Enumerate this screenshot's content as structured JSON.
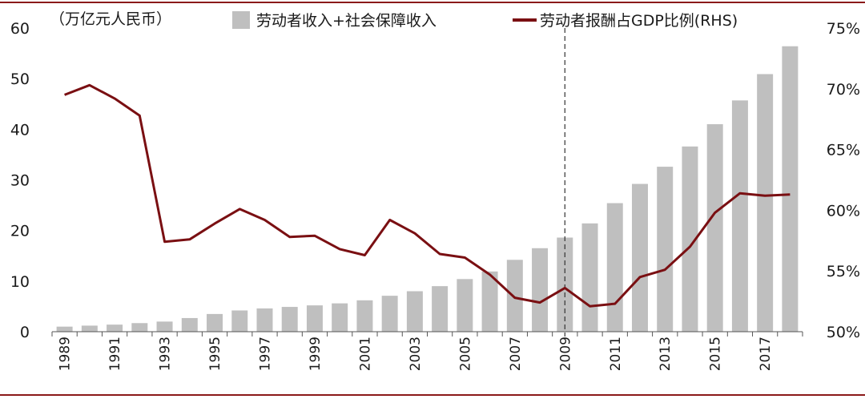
{
  "chart_data": {
    "type": "bar+line",
    "title": "",
    "unit_label": "（万亿元人民币）",
    "years": [
      1989,
      1990,
      1991,
      1992,
      1993,
      1994,
      1995,
      1996,
      1997,
      1998,
      1999,
      2000,
      2001,
      2002,
      2003,
      2004,
      2005,
      2006,
      2007,
      2008,
      2009,
      2010,
      2011,
      2012,
      2013,
      2014,
      2015,
      2016,
      2017,
      2018
    ],
    "x_tick_labels": [
      "1989",
      "1991",
      "1993",
      "1995",
      "1997",
      "1999",
      "2001",
      "2003",
      "2005",
      "2007",
      "2009",
      "2011",
      "2013",
      "2015",
      "2017"
    ],
    "series": [
      {
        "name": "劳动者收入+社会保障收入",
        "type": "bar",
        "axis": "left",
        "color": "#bfbfbf",
        "values": [
          1.0,
          1.2,
          1.4,
          1.7,
          2.0,
          2.7,
          3.5,
          4.2,
          4.6,
          4.9,
          5.2,
          5.6,
          6.2,
          7.1,
          8.0,
          9.0,
          10.4,
          11.9,
          14.2,
          16.5,
          18.6,
          21.4,
          25.4,
          29.2,
          32.6,
          36.6,
          41.0,
          45.7,
          50.9,
          56.4
        ]
      },
      {
        "name": "劳动者报酬占GDP比例(RHS)",
        "type": "line",
        "axis": "right",
        "color": "#7a0f12",
        "values": [
          69.5,
          70.3,
          69.2,
          67.8,
          57.4,
          57.6,
          58.9,
          60.1,
          59.2,
          57.8,
          57.9,
          56.8,
          56.3,
          59.2,
          58.1,
          56.4,
          56.1,
          54.7,
          52.8,
          52.4,
          53.6,
          52.1,
          52.3,
          54.5,
          55.1,
          57.0,
          59.8,
          61.4,
          61.2,
          61.3
        ]
      }
    ],
    "y_left": {
      "min": 0,
      "max": 60,
      "ticks": [
        0,
        10,
        20,
        30,
        40,
        50,
        60
      ],
      "tick_labels": [
        "0",
        "10",
        "20",
        "30",
        "40",
        "50",
        "60"
      ]
    },
    "y_right": {
      "min": 50,
      "max": 75,
      "ticks": [
        50,
        55,
        60,
        65,
        70,
        75
      ],
      "tick_labels": [
        "50%",
        "55%",
        "60%",
        "65%",
        "70%",
        "75%"
      ]
    },
    "reference_line": {
      "year": 2009,
      "style": "dashed"
    },
    "legend_position": "top",
    "frame_color": "#8b1a1a"
  }
}
